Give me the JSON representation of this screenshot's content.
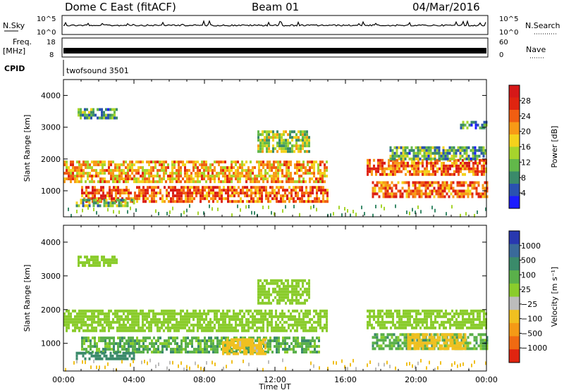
{
  "header": {
    "radar": "Dome C East (fitACF)",
    "beam": "Beam 01",
    "date": "04/Mar/2016"
  },
  "strips": {
    "nsky_label": "N.Sky",
    "nsky_ticks": [
      "10^5",
      "10^0"
    ],
    "nsearch_label": "N.Search",
    "nsearch_ticks": [
      "10^5",
      "10^0"
    ],
    "freq_label": "Freq.",
    "freq_unit": "[MHz]",
    "freq_ticks": [
      "18",
      "8"
    ],
    "nave_label": "Nave",
    "nave_ticks": [
      "60",
      "0"
    ],
    "cpid_label": "CPID",
    "cpid_value": "twofsound 3501"
  },
  "chart_data": [
    {
      "type": "heatmap",
      "parameter": "power",
      "ylabel": "Slant Range [km]",
      "ylim": [
        180,
        4500
      ],
      "yticks": [
        "4000",
        "3000",
        "2000",
        "1000"
      ],
      "xlim": [
        0,
        24
      ],
      "colorbar": {
        "label": "Power [dB]",
        "ticks": [
          "28",
          "24",
          "20",
          "16",
          "12",
          "8",
          "4"
        ],
        "range": [
          0,
          32
        ],
        "colors": [
          "#1c1cff",
          "#2a52b0",
          "#3a8a6a",
          "#62b84a",
          "#a6d42c",
          "#f4d21c",
          "#f89a16",
          "#f05e12",
          "#e02410",
          "#d61818"
        ]
      },
      "bands": [
        {
          "t": [
            0.0,
            15.0
          ],
          "r": [
            1250,
            1950
          ],
          "level": 20
        },
        {
          "t": [
            1.0,
            15.0
          ],
          "r": [
            700,
            1150
          ],
          "level": 24
        },
        {
          "t": [
            0.7,
            4.0
          ],
          "r": [
            550,
            750
          ],
          "level": 12
        },
        {
          "t": [
            0.8,
            3.0
          ],
          "r": [
            3300,
            3600
          ],
          "level": 10
        },
        {
          "t": [
            11.0,
            14.0
          ],
          "r": [
            2200,
            2900
          ],
          "level": 14
        },
        {
          "t": [
            17.2,
            24.0
          ],
          "r": [
            1500,
            2000
          ],
          "level": 24
        },
        {
          "t": [
            17.5,
            24.0
          ],
          "r": [
            850,
            1300
          ],
          "level": 24
        },
        {
          "t": [
            18.5,
            24.0
          ],
          "r": [
            2000,
            2400
          ],
          "level": 10
        },
        {
          "t": [
            22.5,
            24.0
          ],
          "r": [
            3000,
            3200
          ],
          "level": 8
        }
      ]
    },
    {
      "type": "heatmap",
      "parameter": "velocity",
      "ylabel": "Slant Range [km]",
      "ylim": [
        180,
        4500
      ],
      "yticks": [
        "4000",
        "3000",
        "2000",
        "1000"
      ],
      "xlim": [
        0,
        24
      ],
      "xticks": [
        "00:00",
        "04:00",
        "08:00",
        "12:00",
        "16:00",
        "20:00",
        "00:00"
      ],
      "xlabel": "Time UT",
      "colorbar": {
        "label": "Velocity [m s⁻¹]",
        "ticks": [
          "1000",
          "500",
          "100",
          "25",
          "−25",
          "−100",
          "−500",
          "−1000"
        ],
        "colors": [
          "#2838b0",
          "#3a6a9a",
          "#3a8a6a",
          "#5ab04a",
          "#8acc2c",
          "#bcbcbc",
          "#f0c020",
          "#f49a16",
          "#f06a12",
          "#e02410"
        ]
      },
      "bands": [
        {
          "t": [
            0.0,
            15.0
          ],
          "r": [
            1350,
            2000
          ],
          "level": 0
        },
        {
          "t": [
            1.0,
            14.5
          ],
          "r": [
            700,
            1200
          ],
          "level": 60
        },
        {
          "t": [
            9.0,
            11.5
          ],
          "r": [
            650,
            1150
          ],
          "level": -150
        },
        {
          "t": [
            0.7,
            4.0
          ],
          "r": [
            550,
            750
          ],
          "level": 200
        },
        {
          "t": [
            17.2,
            24.0
          ],
          "r": [
            1450,
            2000
          ],
          "level": 0
        },
        {
          "t": [
            17.5,
            24.0
          ],
          "r": [
            850,
            1300
          ],
          "level": 60
        },
        {
          "t": [
            19.5,
            22.8
          ],
          "r": [
            800,
            1300
          ],
          "level": -200
        },
        {
          "t": [
            11.0,
            14.0
          ],
          "r": [
            2200,
            2900
          ],
          "level": 0
        },
        {
          "t": [
            0.8,
            3.0
          ],
          "r": [
            3300,
            3600
          ],
          "level": 0
        }
      ]
    }
  ]
}
